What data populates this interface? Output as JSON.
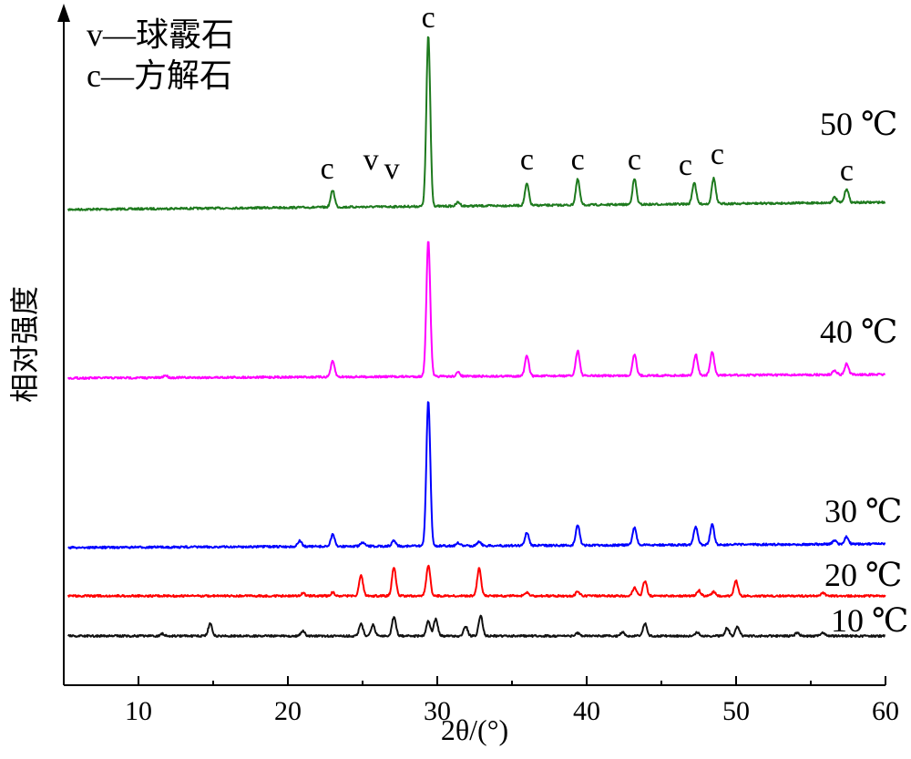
{
  "chart_data": {
    "type": "line",
    "xlabel": "2θ/(°)",
    "ylabel": "相对强度",
    "xlim": [
      5,
      60
    ],
    "xticks": [
      10,
      20,
      30,
      40,
      50,
      60
    ],
    "grid": false,
    "legend": {
      "placement": "top-left",
      "entries": [
        "v—球霰石",
        "c—方解石"
      ]
    },
    "peak_markers": [
      {
        "label": "c",
        "x": 29.4
      },
      {
        "label": "c",
        "x": 23.0
      },
      {
        "label": "v",
        "x": 25.8
      },
      {
        "label": "v",
        "x": 27.2
      },
      {
        "label": "c",
        "x": 36.0
      },
      {
        "label": "c",
        "x": 39.4
      },
      {
        "label": "c",
        "x": 43.2
      },
      {
        "label": "c",
        "x": 47.1
      },
      {
        "label": "c",
        "x": 48.5
      },
      {
        "label": "c",
        "x": 57.4
      }
    ],
    "series": [
      {
        "name": "50 ℃",
        "color": "#1e7a1e",
        "baseline": 1.0,
        "peaks": [
          [
            23.0,
            0.22
          ],
          [
            29.4,
            2.2
          ],
          [
            31.4,
            0.05
          ],
          [
            36.0,
            0.28
          ],
          [
            39.4,
            0.33
          ],
          [
            43.2,
            0.33
          ],
          [
            47.2,
            0.28
          ],
          [
            48.5,
            0.33
          ],
          [
            56.6,
            0.07
          ],
          [
            57.4,
            0.18
          ]
        ]
      },
      {
        "name": "40 ℃",
        "color": "#ff00ff",
        "baseline": 1.0,
        "peaks": [
          [
            11.8,
            0.03
          ],
          [
            23.0,
            0.2
          ],
          [
            29.4,
            1.75
          ],
          [
            31.4,
            0.05
          ],
          [
            36.0,
            0.26
          ],
          [
            39.4,
            0.33
          ],
          [
            43.2,
            0.28
          ],
          [
            47.3,
            0.27
          ],
          [
            48.4,
            0.3
          ],
          [
            56.6,
            0.06
          ],
          [
            57.4,
            0.14
          ]
        ]
      },
      {
        "name": "30 ℃",
        "color": "#0000ff",
        "baseline": 1.0,
        "peaks": [
          [
            20.8,
            0.08
          ],
          [
            23.0,
            0.16
          ],
          [
            25.0,
            0.05
          ],
          [
            27.1,
            0.08
          ],
          [
            29.4,
            2.0
          ],
          [
            31.4,
            0.04
          ],
          [
            32.8,
            0.06
          ],
          [
            36.0,
            0.18
          ],
          [
            39.4,
            0.28
          ],
          [
            43.2,
            0.24
          ],
          [
            47.3,
            0.25
          ],
          [
            48.4,
            0.28
          ],
          [
            56.6,
            0.05
          ],
          [
            57.4,
            0.1
          ]
        ]
      },
      {
        "name": "20 ℃",
        "color": "#ff0000",
        "baseline": 1.0,
        "peaks": [
          [
            21.0,
            0.04
          ],
          [
            23.0,
            0.05
          ],
          [
            24.9,
            0.3
          ],
          [
            27.1,
            0.42
          ],
          [
            29.4,
            0.45
          ],
          [
            32.8,
            0.4
          ],
          [
            36.0,
            0.05
          ],
          [
            39.4,
            0.06
          ],
          [
            43.2,
            0.12
          ],
          [
            43.9,
            0.22
          ],
          [
            47.5,
            0.08
          ],
          [
            48.5,
            0.06
          ],
          [
            50.0,
            0.22
          ],
          [
            55.8,
            0.05
          ]
        ]
      },
      {
        "name": "10 ℃",
        "color": "#111111",
        "baseline": 1.0,
        "peaks": [
          [
            11.6,
            0.03
          ],
          [
            14.8,
            0.18
          ],
          [
            21.0,
            0.07
          ],
          [
            24.9,
            0.18
          ],
          [
            25.7,
            0.16
          ],
          [
            27.1,
            0.28
          ],
          [
            29.4,
            0.22
          ],
          [
            29.9,
            0.25
          ],
          [
            31.9,
            0.14
          ],
          [
            32.9,
            0.3
          ],
          [
            39.4,
            0.04
          ],
          [
            42.4,
            0.06
          ],
          [
            43.9,
            0.18
          ],
          [
            47.4,
            0.05
          ],
          [
            49.4,
            0.12
          ],
          [
            50.1,
            0.14
          ],
          [
            54.1,
            0.05
          ],
          [
            55.8,
            0.05
          ]
        ]
      }
    ]
  }
}
